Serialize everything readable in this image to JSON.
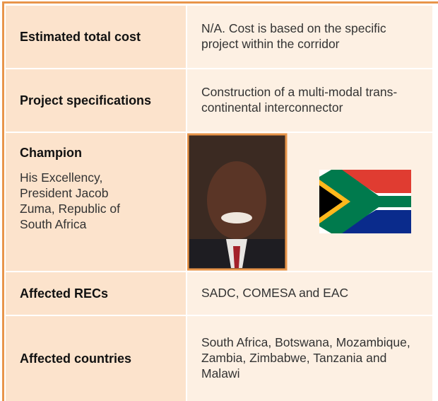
{
  "table": {
    "rows": [
      {
        "label": "Estimated total cost",
        "value": "N/A. Cost is based on the specific project within the corridor"
      },
      {
        "label": "Project specifications",
        "value": "Construction of a multi-modal trans-continental interconnector"
      },
      {
        "label": "Champion",
        "description": "His Excellency, President Jacob Zuma, Republic of South Africa"
      },
      {
        "label": "Affected RECs",
        "value": "SADC, COMESA and EAC"
      },
      {
        "label": "Affected countries",
        "value": "South Africa, Botswana, Mozambique, Zambia, Zimbabwe, Tanzania and Malawi"
      }
    ]
  }
}
